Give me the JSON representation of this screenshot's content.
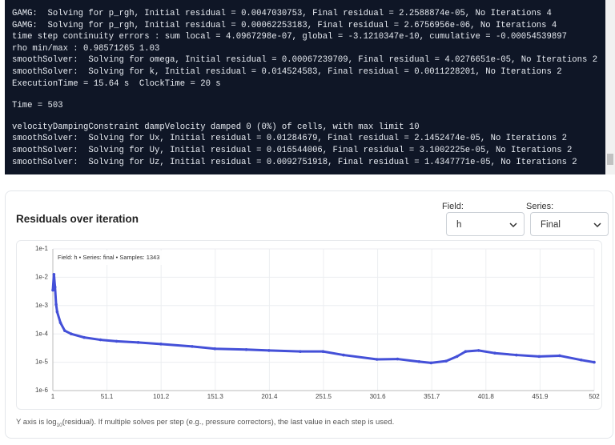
{
  "terminal": {
    "blocks": [
      [
        "GAMG:  Solving for p_rgh, Initial residual = 0.0047030753, Final residual = 2.2588874e-05, No Iterations 4",
        "GAMG:  Solving for p_rgh, Initial residual = 0.00062253183, Final residual = 2.6756956e-06, No Iterations 4",
        "time step continuity errors : sum local = 4.0967298e-07, global = -3.1210347e-10, cumulative = -0.00054539897",
        "rho min/max : 0.98571265 1.03",
        "smoothSolver:  Solving for omega, Initial residual = 0.00067239709, Final residual = 4.0276651e-05, No Iterations 2",
        "smoothSolver:  Solving for k, Initial residual = 0.014524583, Final residual = 0.0011228201, No Iterations 2",
        "ExecutionTime = 15.64 s  ClockTime = 20 s"
      ],
      [
        "Time = 503"
      ],
      [
        "velocityDampingConstraint dampVelocity damped 0 (0%) of cells, with max limit 10",
        "smoothSolver:  Solving for Ux, Initial residual = 0.01284679, Final residual = 2.1452474e-05, No Iterations 2",
        "smoothSolver:  Solving for Uy, Initial residual = 0.016544006, Final residual = 3.1002225e-05, No Iterations 2",
        "smoothSolver:  Solving for Uz, Initial residual = 0.0092751918, Final residual = 1.4347771e-05, No Iterations 2"
      ]
    ]
  },
  "controls": {
    "field_label": "Field:",
    "field_value": "h",
    "series_label": "Series:",
    "series_value": "Final"
  },
  "note": {
    "before": "Y axis is log",
    "sub": "10",
    "after": "(residual). If multiple solves per step (e.g., pressure correctors), the last value in each step is used."
  },
  "chart_data": {
    "type": "line",
    "title": "Residuals over iteration",
    "annotation": "Field: h • Series: final • Samples: 1343",
    "log_scale_y": true,
    "grid": true,
    "series": [
      {
        "color": "#4450d8",
        "x": [
          1,
          2,
          3,
          4,
          5,
          8,
          12,
          18,
          30,
          45,
          60,
          80,
          101,
          130,
          151,
          180,
          201,
          230,
          251,
          270,
          301,
          320,
          340,
          351,
          365,
          375,
          383,
          395,
          410,
          430,
          451,
          470,
          490,
          502
        ],
        "values": [
          0.0035,
          0.0126,
          0.0045,
          0.0011,
          0.0006,
          0.00025,
          0.00013,
          0.0001,
          7.5e-05,
          6.2e-05,
          5.5e-05,
          5e-05,
          4.4e-05,
          3.6e-05,
          3e-05,
          2.8e-05,
          2.6e-05,
          2.4e-05,
          2.4e-05,
          1.8e-05,
          1.26e-05,
          1.3e-05,
          1.05e-05,
          9.5e-06,
          1.1e-05,
          1.6e-05,
          2.4e-05,
          2.6e-05,
          2.1e-05,
          1.8e-05,
          1.6e-05,
          1.7e-05,
          1.2e-05,
          1e-05
        ]
      }
    ],
    "xlim": [
      1,
      502
    ],
    "xticks": [
      1,
      51.1,
      101.2,
      151.3,
      201.4,
      251.5,
      301.6,
      351.7,
      401.8,
      451.9,
      502
    ],
    "ylim": [
      1e-06,
      0.1
    ],
    "yticks": [
      {
        "value": 1e-06,
        "label": "1e-6"
      },
      {
        "value": 1e-05,
        "label": "1e-5"
      },
      {
        "value": 0.0001,
        "label": "1e-4"
      },
      {
        "value": 0.001,
        "label": "1e-3"
      },
      {
        "value": 0.01,
        "label": "1e-2"
      },
      {
        "value": 0.1,
        "label": "1e-1"
      }
    ]
  }
}
